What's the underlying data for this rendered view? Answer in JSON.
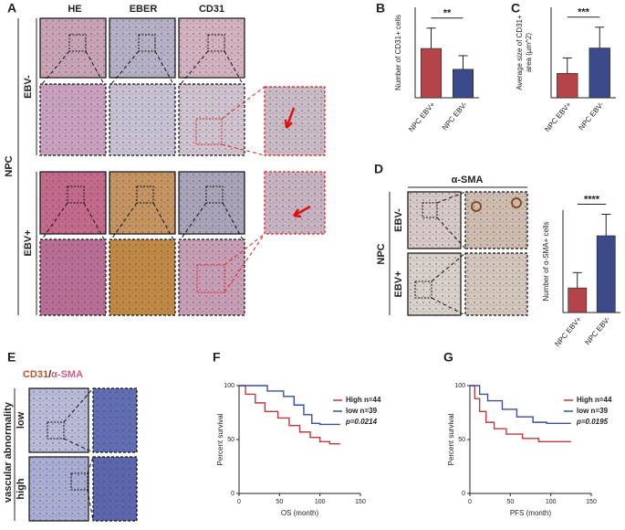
{
  "figure": {
    "panel_labels": [
      "A",
      "B",
      "C",
      "D",
      "E",
      "F",
      "G"
    ],
    "a": {
      "columns": [
        "HE",
        "EBER",
        "CD31"
      ],
      "group": "NPC",
      "rows": [
        "EBV-",
        "EBV+"
      ]
    },
    "d": {
      "stain": "α-SMA",
      "group": "NPC",
      "rows": [
        "EBV-",
        "EBV+"
      ]
    },
    "e": {
      "stain": [
        "CD31",
        "/",
        "α-SMA"
      ],
      "group": "vascular abnormality",
      "rows": [
        "low",
        "high"
      ]
    }
  },
  "chart_data": [
    {
      "type": "bar",
      "ylabel": "Number of CD31+ cells",
      "categories": [
        "NPC EBV+",
        "NPC EBV-"
      ],
      "values": [
        109,
        63
      ],
      "errors": [
        45,
        30
      ],
      "colors": [
        "#b5444a",
        "#3b4a8a"
      ],
      "ylim": [
        0,
        200
      ],
      "annotation": "**"
    },
    {
      "type": "bar",
      "ylabel": [
        "Average size of CD31+",
        "area (µm^2)"
      ],
      "categories": [
        "NPC EBV+",
        "NPC EBV-"
      ],
      "values": [
        27,
        55
      ],
      "errors": [
        17,
        23
      ],
      "colors": [
        "#b5444a",
        "#3b4a8a"
      ],
      "ylim": [
        0,
        100
      ],
      "annotation": "***"
    },
    {
      "type": "bar",
      "ylabel": "Number of α-SMA+ cells",
      "categories": [
        "NPC EBV+",
        "NPC EBV-"
      ],
      "values": [
        24,
        75
      ],
      "errors": [
        15,
        21
      ],
      "colors": [
        "#b5444a",
        "#3b4a8a"
      ],
      "ylim": [
        0,
        100
      ],
      "annotation": "****"
    },
    {
      "type": "line",
      "xlabel": "OS (month)",
      "ylabel": "Percent survival",
      "xlim": [
        0,
        150
      ],
      "xticks": [
        0,
        50,
        100,
        150
      ],
      "ylim": [
        0,
        100
      ],
      "yticks": [
        0,
        50,
        100
      ],
      "annotation": "p=0.0214",
      "series": [
        {
          "name": "High n=44",
          "color": "#c0393b",
          "x": [
            0,
            8,
            8,
            20,
            20,
            32,
            32,
            48,
            48,
            62,
            62,
            75,
            75,
            88,
            88,
            100,
            100,
            112,
            112,
            125
          ],
          "values": [
            100,
            100,
            92,
            92,
            84,
            84,
            76,
            76,
            70,
            70,
            63,
            63,
            57,
            57,
            52,
            52,
            48,
            48,
            46,
            46
          ]
        },
        {
          "name": "low n=39",
          "color": "#3b4f9a",
          "x": [
            0,
            35,
            35,
            55,
            55,
            68,
            68,
            80,
            80,
            90,
            90,
            100,
            100,
            125
          ],
          "values": [
            100,
            100,
            95,
            95,
            90,
            90,
            82,
            82,
            73,
            73,
            65,
            65,
            64,
            64
          ]
        }
      ]
    },
    {
      "type": "line",
      "xlabel": "PFS (month)",
      "ylabel": "Percent survival",
      "xlim": [
        0,
        150
      ],
      "xticks": [
        0,
        50,
        100,
        150
      ],
      "ylim": [
        0,
        100
      ],
      "yticks": [
        0,
        50,
        100
      ],
      "annotation": "p=0.0195",
      "series": [
        {
          "name": "High n=44",
          "color": "#c0393b",
          "x": [
            0,
            6,
            6,
            12,
            12,
            20,
            20,
            30,
            30,
            45,
            45,
            65,
            65,
            85,
            85,
            125
          ],
          "values": [
            100,
            100,
            88,
            88,
            76,
            76,
            66,
            66,
            60,
            60,
            55,
            55,
            51,
            51,
            48,
            48
          ]
        },
        {
          "name": "low n=39",
          "color": "#3b4f9a",
          "x": [
            0,
            12,
            12,
            22,
            22,
            40,
            40,
            58,
            58,
            78,
            78,
            95,
            95,
            125
          ],
          "values": [
            100,
            100,
            92,
            92,
            86,
            86,
            78,
            78,
            71,
            71,
            66,
            66,
            65,
            65
          ]
        }
      ]
    }
  ]
}
